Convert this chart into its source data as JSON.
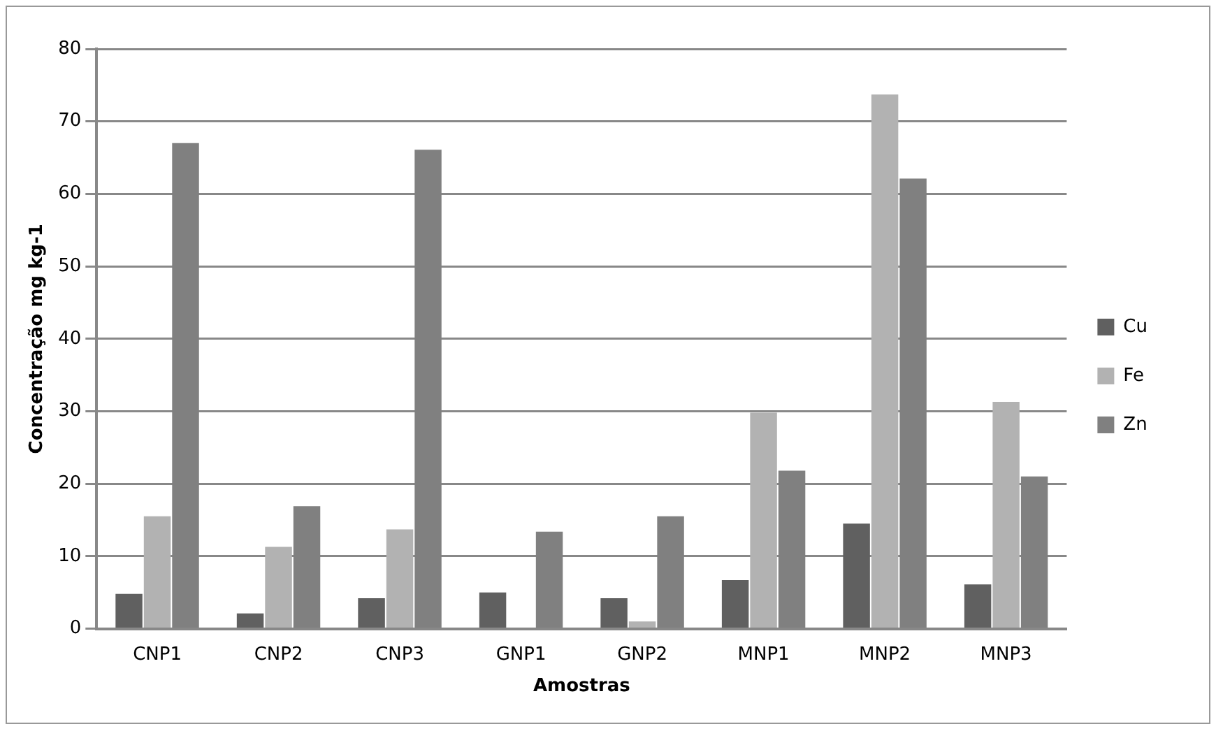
{
  "chart_data": {
    "type": "bar",
    "xlabel": "Amostras",
    "ylabel": "Concentração mg kg-1",
    "categories": [
      "CNP1",
      "CNP2",
      "CNP3",
      "GNP1",
      "GNP2",
      "MNP1",
      "MNP2",
      "MNP3"
    ],
    "series": [
      {
        "name": "Cu",
        "color": "#606060",
        "values": [
          4.8,
          2.1,
          4.2,
          5.0,
          4.2,
          6.7,
          14.5,
          6.1
        ]
      },
      {
        "name": "Fe",
        "color": "#b2b2b2",
        "values": [
          15.5,
          11.3,
          13.7,
          0,
          1.0,
          29.8,
          73.7,
          31.3
        ]
      },
      {
        "name": "Zn",
        "color": "#808080",
        "values": [
          67.0,
          16.9,
          66.1,
          13.4,
          15.5,
          21.8,
          62.1,
          21.0
        ]
      }
    ],
    "ylim": [
      0,
      80
    ],
    "yticks": [
      0,
      10,
      20,
      30,
      40,
      50,
      60,
      70,
      80
    ],
    "grid": "y",
    "legend": "right"
  }
}
